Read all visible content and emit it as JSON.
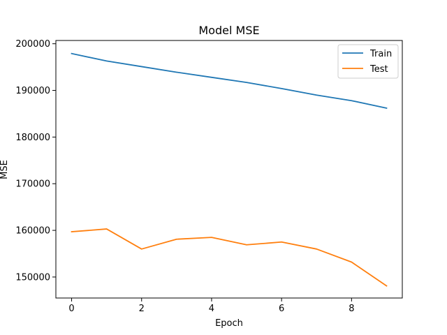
{
  "chart_data": {
    "type": "line",
    "title": "Model MSE",
    "xlabel": "Epoch",
    "ylabel": "MSE",
    "x": [
      0,
      1,
      2,
      3,
      4,
      5,
      6,
      7,
      8,
      9
    ],
    "xlim": [
      -0.45,
      9.45
    ],
    "ylim": [
      145500,
      200700
    ],
    "xticks": [
      0,
      2,
      4,
      6,
      8
    ],
    "yticks": [
      150000,
      160000,
      170000,
      180000,
      190000,
      200000
    ],
    "grid": false,
    "legend_position": "upper right",
    "series": [
      {
        "name": "Train",
        "color": "#1f77b4",
        "values": [
          197900,
          196300,
          195100,
          193900,
          192800,
          191700,
          190400,
          189000,
          187800,
          186200
        ]
      },
      {
        "name": "Test",
        "color": "#ff7f0e",
        "values": [
          159700,
          160300,
          156000,
          158100,
          158500,
          156900,
          157500,
          156000,
          153200,
          148100
        ]
      }
    ]
  }
}
